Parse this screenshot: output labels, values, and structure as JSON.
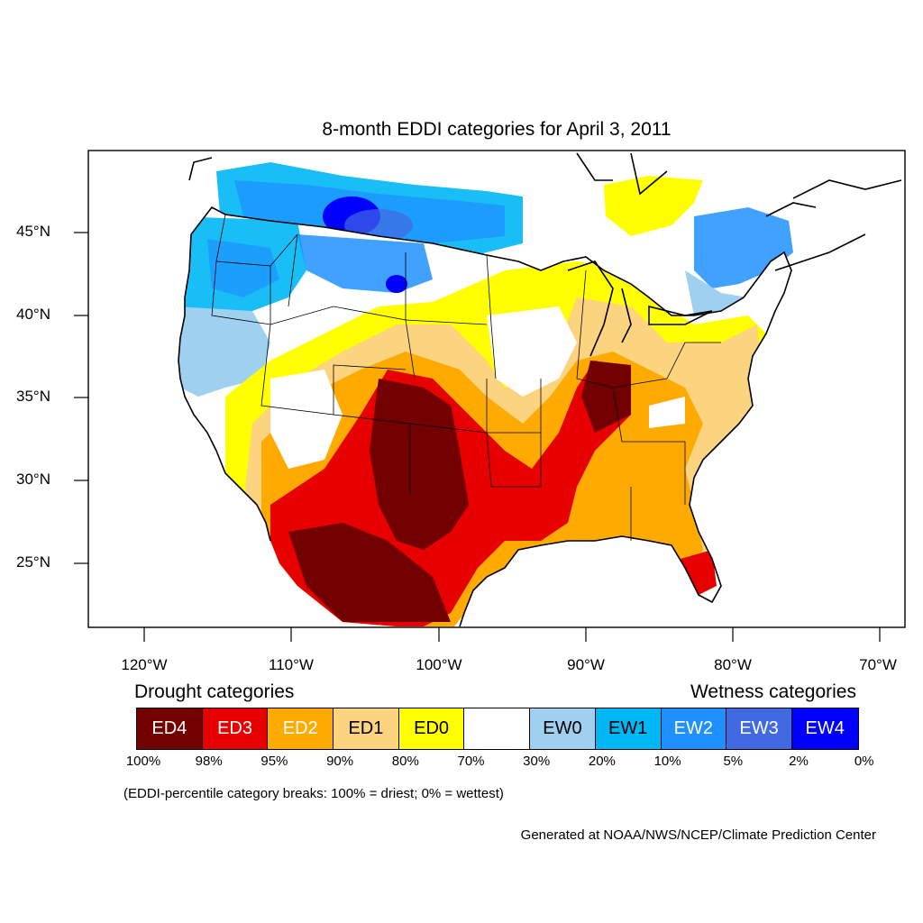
{
  "title": "8-month EDDI categories for April 3, 2011",
  "lat_labels": [
    "45°N",
    "40°N",
    "35°N",
    "30°N",
    "25°N"
  ],
  "lon_labels": [
    "120°W",
    "110°W",
    "100°W",
    "90°W",
    "80°W",
    "70°W"
  ],
  "legend": {
    "drought_heading": "Drought categories",
    "wetness_heading": "Wetness categories",
    "categories": [
      {
        "label": "ED4",
        "color": "#730000",
        "text_color": "#ffffff"
      },
      {
        "label": "ED3",
        "color": "#e60000",
        "text_color": "#ffffff"
      },
      {
        "label": "ED2",
        "color": "#ffaa00",
        "text_color": "#ffffff"
      },
      {
        "label": "ED1",
        "color": "#fcd37f",
        "text_color": "#000000"
      },
      {
        "label": "ED0",
        "color": "#ffff00",
        "text_color": "#000000"
      },
      {
        "label": "",
        "color": "#ffffff",
        "text_color": "#000000"
      },
      {
        "label": "EW0",
        "color": "#9fd0f0",
        "text_color": "#000000"
      },
      {
        "label": "EW1",
        "color": "#00b7f5",
        "text_color": "#000000"
      },
      {
        "label": "EW2",
        "color": "#1e90ff",
        "text_color": "#ffffff"
      },
      {
        "label": "EW3",
        "color": "#4169e1",
        "text_color": "#ffffff"
      },
      {
        "label": "EW4",
        "color": "#0000ff",
        "text_color": "#ffffff"
      }
    ],
    "breaks": [
      "100%",
      "98%",
      "95%",
      "90%",
      "80%",
      "70%",
      "30%",
      "20%",
      "10%",
      "5%",
      "2%",
      "0%"
    ]
  },
  "note": "(EDDI-percentile category breaks: 100% = driest; 0% = wettest)",
  "credit": "Generated at NOAA/NWS/NCEP/Climate Prediction Center"
}
